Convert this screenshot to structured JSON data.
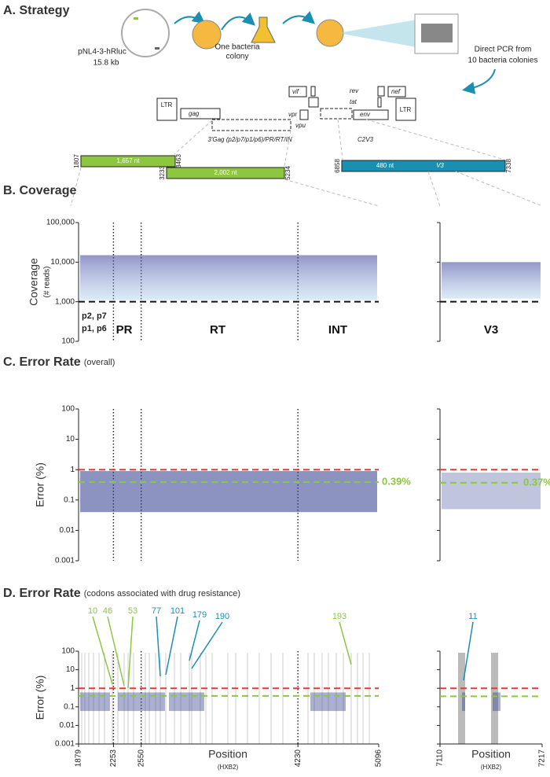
{
  "panel_a": {
    "title": "A. Strategy",
    "plasmid": "pNL4-3-hRluc",
    "plasmid_size": "15.8 kb",
    "colony": [
      "One bacteria",
      "colony"
    ],
    "pcr": [
      "Direct PCR from",
      "10 bacteria colonies"
    ],
    "genes": [
      "LTR",
      "gag",
      "vif",
      "rev",
      "tat",
      "nef",
      "vpr",
      "vpu",
      "env",
      "LTR"
    ],
    "region_gag": "3'Gag (p2/p7/p1/p6)/PR/RT/IN",
    "region_env": "C2V3",
    "amplicons": [
      {
        "start": "1807",
        "end": "3463",
        "label": "1,657 nt"
      },
      {
        "start": "3233",
        "end": "5234",
        "label": "2,002 nt"
      },
      {
        "start": "6858",
        "end": "7338",
        "label": "480 nt",
        "region": "V3"
      }
    ]
  },
  "panel_b": {
    "title": "B. Coverage",
    "ylabel": "Coverage",
    "ylabel_sub": "(# reads)",
    "log_y": true,
    "ylim": [
      100,
      100000
    ],
    "yticks": [
      100,
      {
        "value": 1000,
        "label": "1,000"
      },
      {
        "value": 10000,
        "label": "10,000"
      },
      {
        "value": 100000,
        "label": "100,000"
      }
    ],
    "threshold": 1000,
    "threshold_color": "#111",
    "regions": [
      "p2, p7",
      "p1, p6",
      "PR",
      "RT",
      "INT",
      "V3"
    ]
  },
  "panel_c": {
    "title": "C. Error Rate",
    "title_note": "(overall)",
    "ylabel": "Error (%)",
    "log_y": true,
    "ylim": [
      0.001,
      100
    ],
    "yticks": [
      0.001,
      0.01,
      0.1,
      1,
      10,
      100
    ],
    "threshold": 1,
    "threshold_color": "#e53935",
    "mean_color": "#8dc63f",
    "means": [
      {
        "value": 0.39,
        "label": "0.39%"
      },
      {
        "value": 0.37,
        "label": "0.37%"
      }
    ]
  },
  "panel_d": {
    "title": "D. Error Rate",
    "title_note": "(codons associated with drug resistance)",
    "ylabel": "Error (%)",
    "log_y": true,
    "ylim": [
      0.001,
      100
    ],
    "yticks": [
      0.001,
      0.01,
      0.1,
      1,
      10,
      100
    ],
    "threshold": 1,
    "threshold_color": "#e53935",
    "mean_color": "#8dc63f",
    "means": [
      0.39,
      0.37
    ],
    "xlim": [
      1879,
      5096
    ],
    "xticks": [
      1879,
      2253,
      2550,
      4230,
      5096
    ],
    "x2lim": [
      7110,
      7217
    ],
    "x2ticks": [
      7110,
      7217
    ],
    "xlabel": "Position",
    "xlabel_sub": "(HXB2)",
    "codons": [
      {
        "label": "10",
        "color": "#8dc63f"
      },
      {
        "label": "46",
        "color": "#8dc63f"
      },
      {
        "label": "53",
        "color": "#8dc63f"
      },
      {
        "label": "77",
        "color": "#1a8fb0"
      },
      {
        "label": "101",
        "color": "#1a8fb0"
      },
      {
        "label": "179",
        "color": "#1a8fb0"
      },
      {
        "label": "190",
        "color": "#1a8fb0"
      },
      {
        "label": "193",
        "color": "#8dc63f"
      },
      {
        "label": "11",
        "color": "#1a8fb0"
      }
    ]
  }
}
